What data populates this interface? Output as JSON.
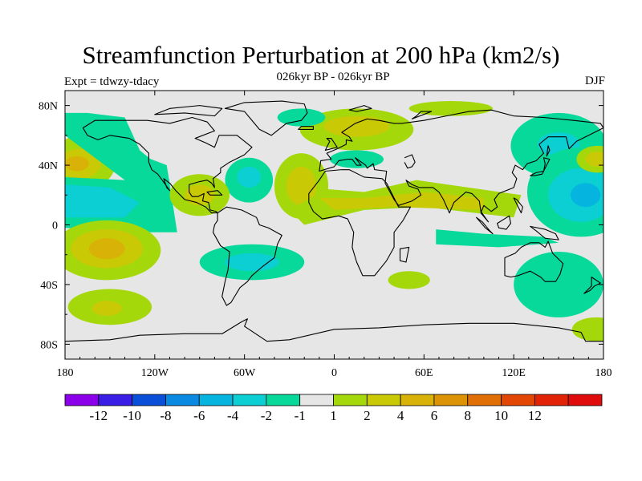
{
  "title": "Streamfunction Perturbation at 200 hPa (km2/s)",
  "subtitle": "026kyr BP - 026kyr BP",
  "left_label": "Expt = tdwzy-tdacy",
  "right_label": "DJF",
  "map": {
    "projection": "cylindrical-equidistant",
    "ocean_color": "#e6e6e6",
    "coastline_color": "#000000",
    "lat_ticks": [
      "80N",
      "40N",
      "0",
      "40S",
      "80S"
    ],
    "lon_ticks": [
      "180",
      "120W",
      "60W",
      "0",
      "60E",
      "120E",
      "180"
    ],
    "lon_range": [
      -180,
      180
    ],
    "lat_range": [
      -90,
      90
    ]
  },
  "colorbar": {
    "colors": [
      "#8b00e8",
      "#3a1ee6",
      "#0a4fd8",
      "#0a8ae0",
      "#05b5e0",
      "#0ccfd4",
      "#07d99a",
      "#e6e6e6",
      "#a5d80a",
      "#c9c905",
      "#d8b206",
      "#dc9406",
      "#e06f06",
      "#e34706",
      "#e22306",
      "#e00c0c"
    ],
    "labels": [
      "-12",
      "-10",
      "-8",
      "-6",
      "-4",
      "-2",
      "-1",
      "1",
      "2",
      "4",
      "6",
      "8",
      "10",
      "12"
    ]
  },
  "chart_data": {
    "type": "heatmap",
    "title": "Streamfunction Perturbation at 200 hPa (km2/s)",
    "subtitle": "026kyr BP - 026kyr BP",
    "season": "DJF",
    "experiment": "Expt = tdwzy-tdacy",
    "xlim": [
      -180,
      180
    ],
    "ylim": [
      -90,
      90
    ],
    "contour_levels": [
      -12,
      -10,
      -8,
      -6,
      -4,
      -2,
      -1,
      1,
      2,
      4,
      6,
      8,
      10,
      12
    ],
    "features": [
      {
        "lon": -170,
        "lat": 40,
        "sign": "positive",
        "peak": 6
      },
      {
        "lon": -150,
        "lat": -17,
        "sign": "positive",
        "peak": 6
      },
      {
        "lon": -170,
        "lat": 20,
        "sign": "negative",
        "peak": -4
      },
      {
        "lon": -130,
        "lat": 0,
        "sign": "negative",
        "peak": -2
      },
      {
        "lon": -60,
        "lat": 28,
        "sign": "negative",
        "peak": -4
      },
      {
        "lon": -55,
        "lat": -25,
        "sign": "negative",
        "peak": -4
      },
      {
        "lon": 40,
        "lat": 18,
        "sign": "positive",
        "peak": 4
      },
      {
        "lon": 10,
        "lat": 65,
        "sign": "positive",
        "peak": 2
      },
      {
        "lon": 145,
        "lat": 53,
        "sign": "negative",
        "peak": -4
      },
      {
        "lon": 160,
        "lat": 20,
        "sign": "negative",
        "peak": -4
      },
      {
        "lon": 175,
        "lat": 44,
        "sign": "positive",
        "peak": 4
      },
      {
        "lon": 80,
        "lat": -10,
        "sign": "negative",
        "peak": -2
      },
      {
        "lon": 140,
        "lat": -50,
        "sign": "negative",
        "peak": -2
      }
    ]
  }
}
